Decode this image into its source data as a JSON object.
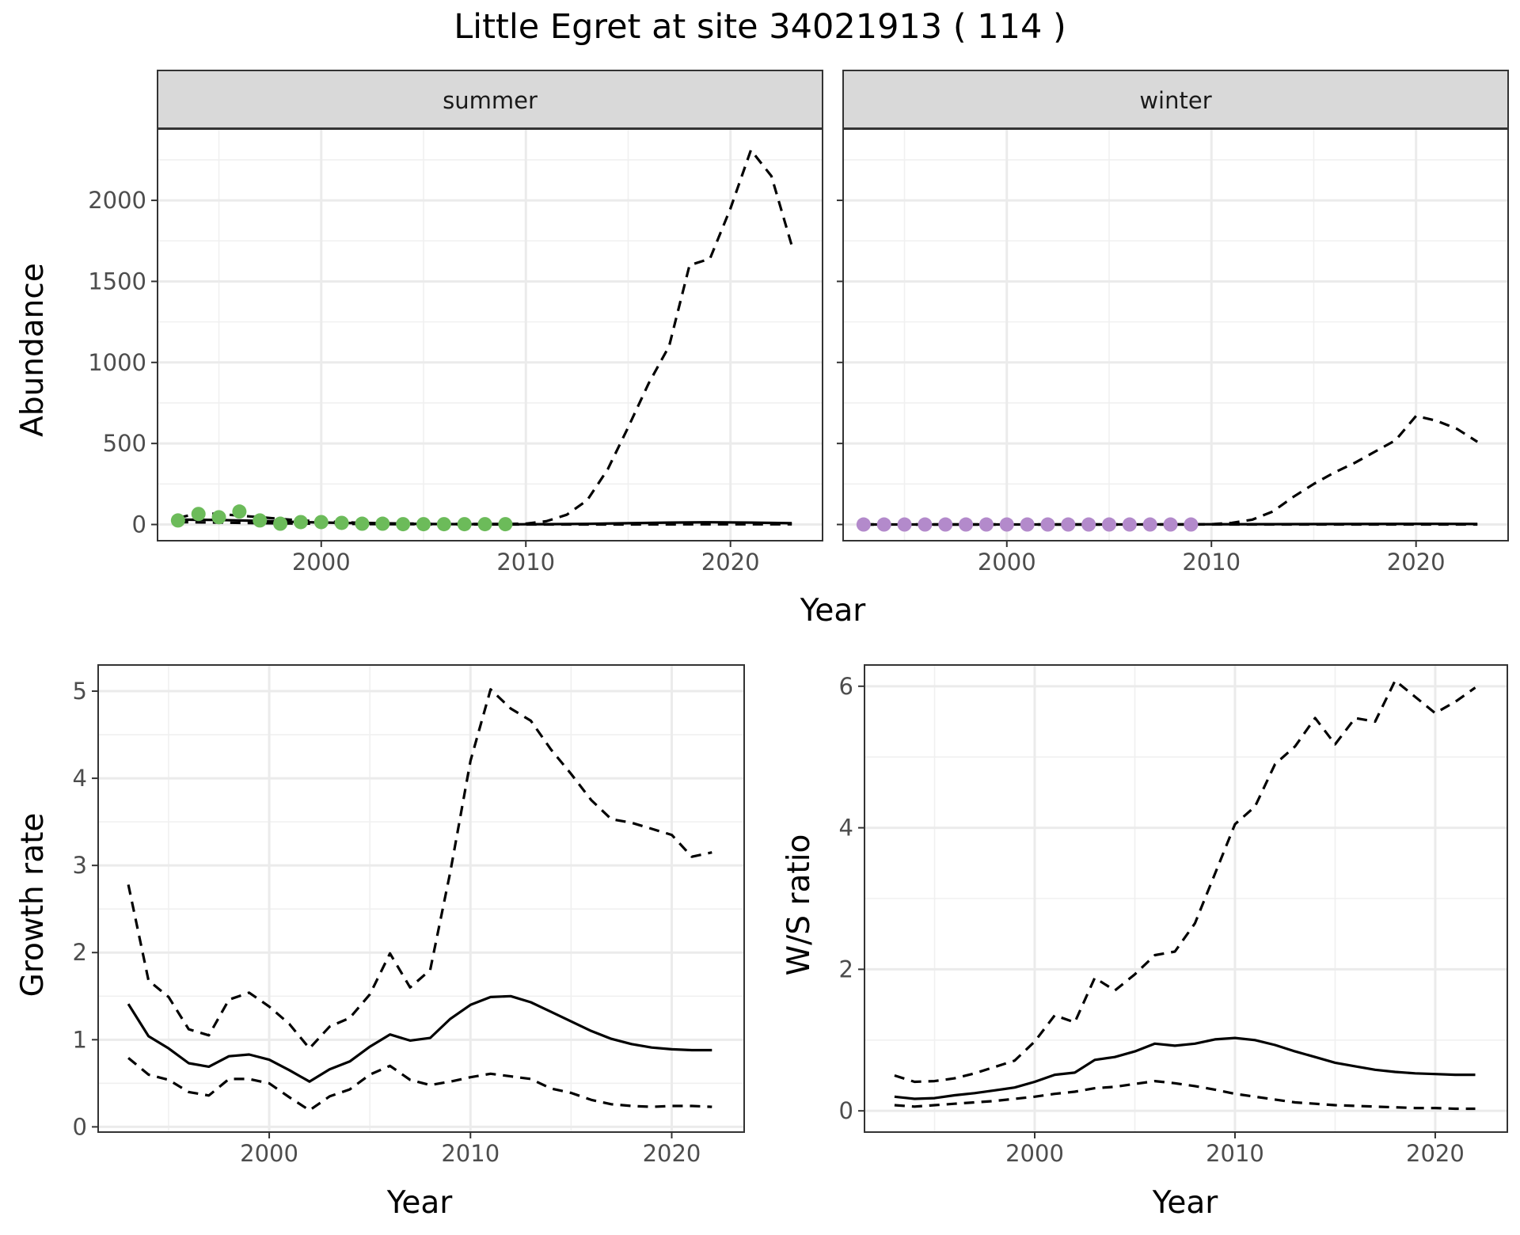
{
  "figure": {
    "title": "Little Egret at site 34021913 ( 114 )"
  },
  "chart_data": [
    {
      "type": "line",
      "panel": "abundance",
      "facets": [
        "summer",
        "winter"
      ],
      "xlabel": "Year",
      "ylabel": "Abundance",
      "xlim": [
        1992,
        2024.5
      ],
      "ylim": [
        -100,
        2440
      ],
      "xticks": [
        2000,
        2010,
        2020
      ],
      "yticks": [
        0,
        500,
        1000,
        1500,
        2000
      ],
      "grid": true,
      "legend": "none",
      "facet_data": {
        "summer": {
          "point_color": "#6cbb5a",
          "points": {
            "x": [
              1993,
              1994,
              1995,
              1996,
              1997,
              1998,
              1999,
              2000,
              2001,
              2002,
              2003,
              2004,
              2005,
              2006,
              2007,
              2008,
              2009
            ],
            "y": [
              25,
              65,
              45,
              80,
              25,
              5,
              15,
              15,
              10,
              5,
              5,
              2,
              2,
              2,
              2,
              2,
              2
            ]
          },
          "estimate": {
            "x": [
              1993,
              1995,
              1997,
              1999,
              2001,
              2003,
              2005,
              2007,
              2009,
              2011,
              2013,
              2015,
              2017,
              2019,
              2021,
              2023
            ],
            "y": [
              30,
              28,
              22,
              15,
              10,
              6,
              3,
              2,
              1,
              2,
              4,
              8,
              12,
              14,
              12,
              8
            ]
          },
          "upper": {
            "x": [
              1993,
              1994,
              1995,
              1996,
              1997,
              1998,
              1999,
              2000,
              2001,
              2002,
              2003,
              2004,
              2005,
              2006,
              2007,
              2008,
              2009,
              2010,
              2011,
              2012,
              2013,
              2014,
              2015,
              2016,
              2017,
              2018,
              2019,
              2020,
              2021,
              2022,
              2023
            ],
            "y": [
              40,
              70,
              65,
              55,
              45,
              35,
              25,
              20,
              15,
              10,
              8,
              6,
              5,
              4,
              3,
              3,
              3,
              5,
              20,
              60,
              150,
              340,
              600,
              870,
              1100,
              1600,
              1640,
              1950,
              2310,
              2150,
              1720
            ]
          },
          "lower": {
            "x": [
              1993,
              1995,
              1997,
              2000,
              2003,
              2006,
              2009,
              2012,
              2015,
              2018,
              2021,
              2023
            ],
            "y": [
              15,
              12,
              8,
              5,
              2,
              1,
              0,
              0,
              0,
              1,
              1,
              1
            ]
          }
        },
        "winter": {
          "point_color": "#b38acb",
          "points": {
            "x": [
              1993,
              1994,
              1995,
              1996,
              1997,
              1998,
              1999,
              2000,
              2001,
              2002,
              2003,
              2004,
              2005,
              2006,
              2007,
              2008,
              2009
            ],
            "y": [
              0,
              0,
              0,
              0,
              0,
              0,
              0,
              0,
              0,
              0,
              0,
              0,
              0,
              0,
              0,
              0,
              0
            ]
          },
          "estimate": {
            "x": [
              1993,
              1997,
              2001,
              2005,
              2009,
              2013,
              2017,
              2021,
              2023
            ],
            "y": [
              0,
              0,
              0,
              0,
              1,
              2,
              3,
              4,
              3
            ]
          },
          "upper": {
            "x": [
              1993,
              1995,
              1997,
              1999,
              2001,
              2003,
              2005,
              2007,
              2009,
              2010,
              2011,
              2012,
              2013,
              2014,
              2015,
              2016,
              2017,
              2018,
              2019,
              2020,
              2021,
              2022,
              2023
            ],
            "y": [
              0,
              0,
              0,
              0,
              0,
              0,
              0,
              0,
              0,
              2,
              10,
              30,
              80,
              170,
              250,
              320,
              380,
              450,
              520,
              670,
              640,
              590,
              510
            ]
          },
          "lower": {
            "x": [
              1993,
              2000,
              2010,
              2020,
              2023
            ],
            "y": [
              0,
              0,
              0,
              0,
              0
            ]
          }
        }
      }
    },
    {
      "type": "line",
      "panel": "growth",
      "xlabel": "Year",
      "ylabel": "Growth rate",
      "xlim": [
        1991.5,
        2023.6
      ],
      "ylim": [
        -0.06,
        5.3
      ],
      "xticks": [
        2000,
        2010,
        2020
      ],
      "yticks": [
        0,
        1,
        2,
        3,
        4,
        5
      ],
      "grid": true,
      "legend": "none",
      "series": [
        {
          "role": "estimate",
          "x": [
            1993,
            1994,
            1995,
            1996,
            1997,
            1998,
            1999,
            2000,
            2001,
            2002,
            2003,
            2004,
            2005,
            2006,
            2007,
            2008,
            2009,
            2010,
            2011,
            2012,
            2013,
            2014,
            2015,
            2016,
            2017,
            2018,
            2019,
            2020,
            2021,
            2022
          ],
          "y": [
            1.41,
            1.04,
            0.9,
            0.73,
            0.69,
            0.81,
            0.83,
            0.77,
            0.65,
            0.52,
            0.66,
            0.75,
            0.92,
            1.06,
            0.99,
            1.02,
            1.24,
            1.4,
            1.49,
            1.5,
            1.43,
            1.32,
            1.21,
            1.1,
            1.01,
            0.95,
            0.91,
            0.89,
            0.88,
            0.88
          ]
        },
        {
          "role": "upper",
          "x": [
            1993,
            1994,
            1995,
            1996,
            1997,
            1998,
            1999,
            2000,
            2001,
            2002,
            2003,
            2004,
            2005,
            2006,
            2007,
            2008,
            2009,
            2010,
            2011,
            2012,
            2013,
            2014,
            2015,
            2016,
            2017,
            2018,
            2019,
            2020,
            2021,
            2022
          ],
          "y": [
            2.78,
            1.68,
            1.49,
            1.12,
            1.05,
            1.46,
            1.54,
            1.38,
            1.18,
            0.9,
            1.15,
            1.25,
            1.52,
            1.99,
            1.6,
            1.8,
            2.93,
            4.2,
            5.02,
            4.8,
            4.66,
            4.33,
            4.05,
            3.75,
            3.53,
            3.49,
            3.42,
            3.35,
            3.1,
            3.15
          ]
        },
        {
          "role": "lower",
          "x": [
            1993,
            1994,
            1995,
            1996,
            1997,
            1998,
            1999,
            2000,
            2001,
            2002,
            2003,
            2004,
            2005,
            2006,
            2007,
            2008,
            2009,
            2010,
            2011,
            2012,
            2013,
            2014,
            2015,
            2016,
            2017,
            2018,
            2019,
            2020,
            2021,
            2022
          ],
          "y": [
            0.79,
            0.6,
            0.54,
            0.4,
            0.36,
            0.55,
            0.55,
            0.5,
            0.34,
            0.19,
            0.35,
            0.43,
            0.6,
            0.7,
            0.54,
            0.48,
            0.52,
            0.57,
            0.61,
            0.58,
            0.55,
            0.44,
            0.39,
            0.31,
            0.26,
            0.24,
            0.23,
            0.24,
            0.24,
            0.23
          ]
        }
      ]
    },
    {
      "type": "line",
      "panel": "ratio",
      "xlabel": "Year",
      "ylabel": "W/S ratio",
      "xlim": [
        1991.5,
        2023.6
      ],
      "ylim": [
        -0.3,
        6.3
      ],
      "xticks": [
        2000,
        2010,
        2020
      ],
      "yticks": [
        0,
        2,
        4,
        6
      ],
      "grid": true,
      "legend": "none",
      "series": [
        {
          "role": "estimate",
          "x": [
            1993,
            1994,
            1995,
            1996,
            1997,
            1998,
            1999,
            2000,
            2001,
            2002,
            2003,
            2004,
            2005,
            2006,
            2007,
            2008,
            2009,
            2010,
            2011,
            2012,
            2013,
            2014,
            2015,
            2016,
            2017,
            2018,
            2019,
            2020,
            2021,
            2022
          ],
          "y": [
            0.2,
            0.17,
            0.18,
            0.22,
            0.25,
            0.29,
            0.33,
            0.41,
            0.51,
            0.54,
            0.72,
            0.76,
            0.84,
            0.95,
            0.92,
            0.95,
            1.01,
            1.03,
            1.0,
            0.93,
            0.84,
            0.76,
            0.68,
            0.63,
            0.58,
            0.55,
            0.53,
            0.52,
            0.51,
            0.51
          ]
        },
        {
          "role": "upper",
          "x": [
            1993,
            1994,
            1995,
            1996,
            1997,
            1998,
            1999,
            2000,
            2001,
            2002,
            2003,
            2004,
            2005,
            2006,
            2007,
            2008,
            2009,
            2010,
            2011,
            2012,
            2013,
            2014,
            2015,
            2016,
            2017,
            2018,
            2019,
            2020,
            2021,
            2022
          ],
          "y": [
            0.5,
            0.41,
            0.42,
            0.46,
            0.53,
            0.62,
            0.71,
            0.98,
            1.35,
            1.25,
            1.88,
            1.7,
            1.93,
            2.2,
            2.25,
            2.65,
            3.35,
            4.05,
            4.3,
            4.9,
            5.15,
            5.55,
            5.18,
            5.55,
            5.5,
            6.08,
            5.85,
            5.62,
            5.78,
            5.98
          ]
        },
        {
          "role": "lower",
          "x": [
            1993,
            1994,
            1995,
            1996,
            1997,
            1998,
            1999,
            2000,
            2001,
            2002,
            2003,
            2004,
            2005,
            2006,
            2007,
            2008,
            2009,
            2010,
            2011,
            2012,
            2013,
            2014,
            2015,
            2016,
            2017,
            2018,
            2019,
            2020,
            2021,
            2022
          ],
          "y": [
            0.08,
            0.06,
            0.08,
            0.1,
            0.12,
            0.14,
            0.17,
            0.2,
            0.24,
            0.27,
            0.32,
            0.34,
            0.38,
            0.42,
            0.39,
            0.35,
            0.3,
            0.24,
            0.2,
            0.16,
            0.12,
            0.1,
            0.08,
            0.07,
            0.06,
            0.05,
            0.04,
            0.04,
            0.03,
            0.03
          ]
        }
      ]
    }
  ]
}
